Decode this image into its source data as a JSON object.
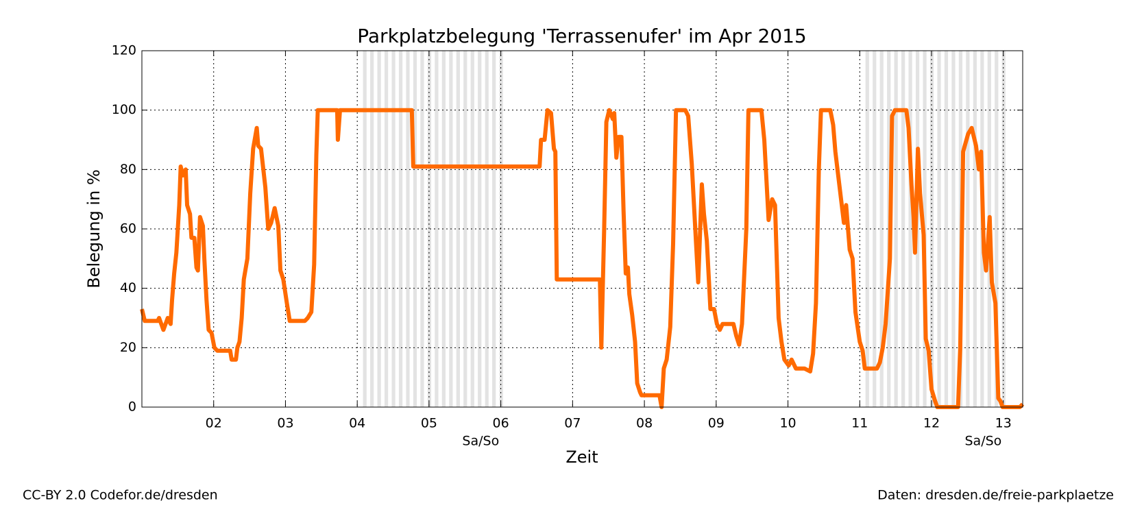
{
  "chart_data": {
    "type": "line",
    "title": "Parkplatzbelegung 'Terrassenufer' im Apr 2015",
    "x_label": "Zeit",
    "y_label": "Belegung in %",
    "xlim": [
      1,
      13.27
    ],
    "ylim": [
      0,
      120
    ],
    "xticks": [
      {
        "value": 2,
        "label": "02"
      },
      {
        "value": 3,
        "label": "03"
      },
      {
        "value": 4,
        "label": "04"
      },
      {
        "value": 5,
        "label": "05"
      },
      {
        "value": 6,
        "label": "06"
      },
      {
        "value": 7,
        "label": "07"
      },
      {
        "value": 8,
        "label": "08"
      },
      {
        "value": 9,
        "label": "09"
      },
      {
        "value": 10,
        "label": "10"
      },
      {
        "value": 11,
        "label": "11"
      },
      {
        "value": 12,
        "label": "12"
      },
      {
        "value": 13,
        "label": "13"
      }
    ],
    "yticks": [
      0,
      20,
      40,
      60,
      80,
      100,
      120
    ],
    "grid": true,
    "weekends": [
      {
        "start": 4,
        "end": 6,
        "label": "Sa/So"
      },
      {
        "start": 11,
        "end": 13,
        "label": "Sa/So"
      }
    ],
    "x": [
      1.0,
      1.04,
      1.22,
      1.24,
      1.3,
      1.36,
      1.4,
      1.42,
      1.45,
      1.48,
      1.52,
      1.54,
      1.57,
      1.61,
      1.63,
      1.67,
      1.69,
      1.73,
      1.76,
      1.78,
      1.81,
      1.85,
      1.87,
      1.9,
      1.93,
      1.97,
      2.01,
      2.05,
      2.23,
      2.25,
      2.31,
      2.33,
      2.36,
      2.39,
      2.42,
      2.47,
      2.51,
      2.55,
      2.6,
      2.62,
      2.66,
      2.72,
      2.76,
      2.8,
      2.85,
      2.9,
      2.93,
      2.97,
      3.02,
      3.06,
      3.27,
      3.31,
      3.36,
      3.4,
      3.43,
      3.45,
      3.72,
      3.73,
      3.76,
      4.76,
      4.78,
      6.54,
      6.56,
      6.61,
      6.65,
      6.7,
      6.74,
      6.76,
      6.78,
      7.38,
      7.4,
      7.44,
      7.47,
      7.51,
      7.56,
      7.58,
      7.61,
      7.64,
      7.68,
      7.71,
      7.74,
      7.77,
      7.79,
      7.83,
      7.87,
      7.9,
      7.94,
      7.96,
      8.21,
      8.24,
      8.27,
      8.31,
      8.36,
      8.4,
      8.44,
      8.57,
      8.61,
      8.66,
      8.72,
      8.75,
      8.8,
      8.83,
      8.87,
      8.92,
      8.97,
      9.01,
      9.05,
      9.09,
      9.24,
      9.28,
      9.32,
      9.36,
      9.42,
      9.45,
      9.63,
      9.67,
      9.73,
      9.78,
      9.82,
      9.87,
      9.91,
      9.95,
      10.01,
      10.05,
      10.11,
      10.23,
      10.31,
      10.35,
      10.39,
      10.43,
      10.46,
      10.59,
      10.63,
      10.66,
      10.69,
      10.74,
      10.78,
      10.81,
      10.86,
      10.9,
      10.94,
      11.0,
      11.04,
      11.07,
      11.24,
      11.28,
      11.32,
      11.36,
      11.42,
      11.45,
      11.49,
      11.65,
      11.68,
      11.72,
      11.75,
      11.77,
      11.81,
      11.84,
      11.89,
      11.92,
      11.96,
      12.0,
      12.05,
      12.08,
      12.37,
      12.4,
      12.44,
      12.51,
      12.56,
      12.62,
      12.66,
      12.69,
      12.73,
      12.76,
      12.81,
      12.84,
      12.89,
      12.93,
      12.96,
      12.99,
      13.23,
      13.27
    ],
    "series": [
      {
        "name": "Terrassenufer",
        "color": "#ff6a00",
        "values": [
          33,
          29,
          29,
          30,
          26,
          30,
          28,
          36,
          45,
          52,
          68,
          81,
          78,
          80,
          68,
          65,
          57,
          57,
          47,
          46,
          64,
          61,
          50,
          36,
          26,
          25,
          20,
          19,
          19,
          16,
          16,
          20,
          22,
          30,
          43,
          50,
          72,
          87,
          94,
          88,
          87,
          74,
          60,
          62,
          67,
          61,
          46,
          43,
          35,
          29,
          29,
          30,
          32,
          48,
          85,
          100,
          100,
          90,
          100,
          100,
          81,
          81,
          90,
          90,
          100,
          99,
          87,
          86,
          43,
          43,
          20,
          60,
          96,
          100,
          97,
          99,
          84,
          91,
          91,
          66,
          45,
          47,
          38,
          31,
          22,
          8,
          5,
          4,
          4,
          0,
          13,
          16,
          27,
          55,
          100,
          100,
          98,
          82,
          55,
          42,
          75,
          65,
          56,
          33,
          33,
          28,
          26,
          28,
          28,
          24,
          21,
          28,
          60,
          100,
          100,
          90,
          63,
          70,
          68,
          30,
          22,
          16,
          14,
          16,
          13,
          13,
          12,
          18,
          35,
          80,
          100,
          100,
          95,
          86,
          80,
          70,
          62,
          68,
          53,
          50,
          32,
          22,
          19,
          13,
          13,
          15,
          20,
          28,
          50,
          98,
          100,
          100,
          94,
          75,
          64,
          52,
          87,
          72,
          58,
          23,
          19,
          6,
          2,
          0,
          0,
          20,
          86,
          92,
          94,
          88,
          80,
          86,
          52,
          46,
          64,
          42,
          35,
          3,
          2,
          0,
          0,
          1
        ]
      }
    ]
  },
  "footer": {
    "license": "CC-BY 2.0 Codefor.de/dresden",
    "source": "Daten: dresden.de/freie-parkplaetze"
  }
}
